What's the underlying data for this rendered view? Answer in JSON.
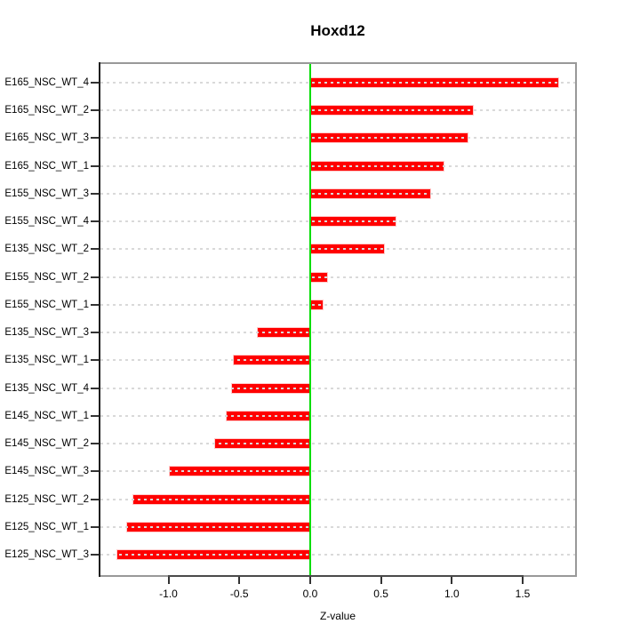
{
  "chart_data": {
    "type": "bar",
    "orientation": "horizontal",
    "title": "Hoxd12",
    "xlabel": "Z-value",
    "ylabel": "",
    "categories": [
      "E165_NSC_WT_4",
      "E165_NSC_WT_2",
      "E165_NSC_WT_3",
      "E165_NSC_WT_1",
      "E155_NSC_WT_3",
      "E155_NSC_WT_4",
      "E135_NSC_WT_2",
      "E155_NSC_WT_2",
      "E155_NSC_WT_1",
      "E135_NSC_WT_3",
      "E135_NSC_WT_1",
      "E135_NSC_WT_4",
      "E145_NSC_WT_1",
      "E145_NSC_WT_2",
      "E145_NSC_WT_3",
      "E125_NSC_WT_2",
      "E125_NSC_WT_1",
      "E125_NSC_WT_3"
    ],
    "values": [
      1.75,
      1.15,
      1.11,
      0.94,
      0.85,
      0.6,
      0.52,
      0.12,
      0.09,
      -0.37,
      -0.54,
      -0.55,
      -0.59,
      -0.67,
      -0.99,
      -1.25,
      -1.29,
      -1.36
    ],
    "xlim": [
      -1.48,
      1.87
    ],
    "xticks": [
      -1.0,
      -0.5,
      0.0,
      0.5,
      1.0,
      1.5
    ],
    "xtick_labels": [
      "-1.0",
      "-0.5",
      "0.0",
      "0.5",
      "1.0",
      "1.5"
    ],
    "grid": true,
    "grid_style": "dotted",
    "legend_position": "none",
    "colors": {
      "bar": "#ff0000",
      "zero_line": "#00dd00",
      "grid": "#d9d9d9",
      "box": "#999999",
      "axis": "#333333",
      "text": "#000000"
    }
  }
}
